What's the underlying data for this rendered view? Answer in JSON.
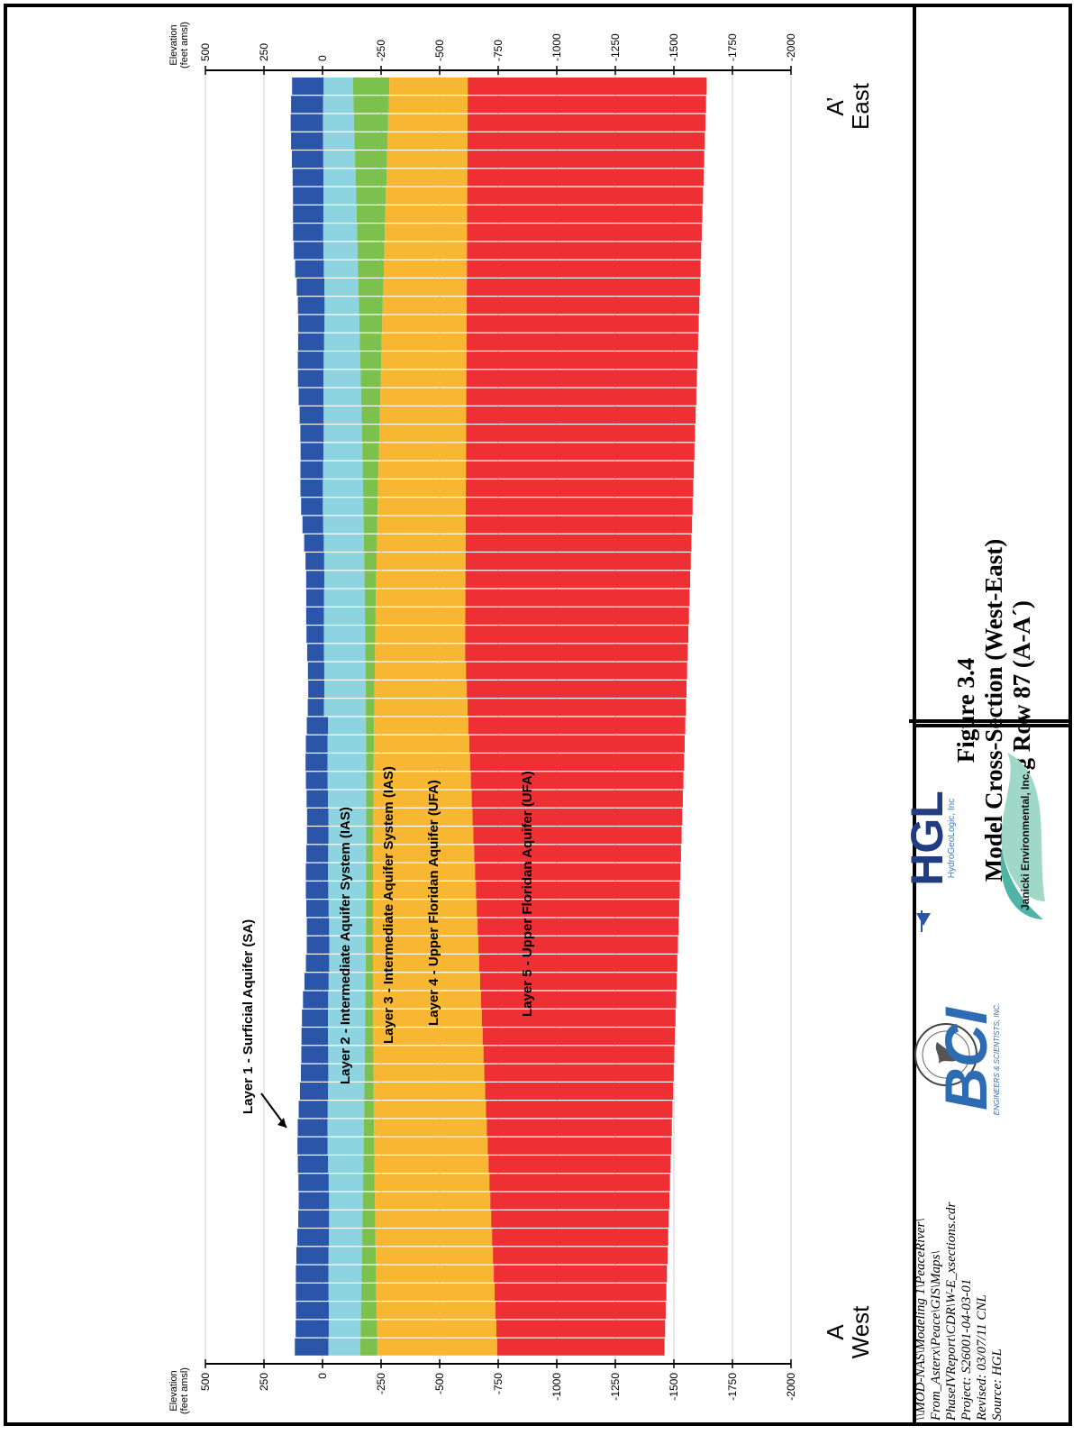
{
  "figure": {
    "title_line1": "Figure 3.4",
    "title_line2": "Model Cross-Section (West-East)",
    "title_line3": "Along Row 87 (A-A´)"
  },
  "notes": [
    "\\\\MOD-NAS\\Modeling 1\\PeaceRiver\\",
    "From_Asterx\\Peace\\GIS\\Maps\\",
    "PhaseIVReport\\CDR\\W-E_xsections.cdr",
    "Project: S26001-04-03-01",
    "Revised: 03/07/11  CNL",
    "Source: HGL"
  ],
  "axis": {
    "label_line1": "Elevation",
    "label_line2": "(feet amsl)",
    "ticks": [
      "500",
      "250",
      "0",
      "-250",
      "-500",
      "-750",
      "-1000",
      "-1250",
      "-1500",
      "-1750",
      "-2000"
    ]
  },
  "ends": {
    "west_letter": "A",
    "west_label": "West",
    "east_letter": "A’",
    "east_label": "East"
  },
  "layers": [
    {
      "label": "Layer 1 - Surficial Aquifer (SA)",
      "color": "#2b55a8"
    },
    {
      "label": "Layer 2 - Intermediate Aquifer System (IAS)",
      "color": "#8dd3e0"
    },
    {
      "label": "Layer 3 - Intermediate Aquifer System (IAS)",
      "color": "#7cc04e"
    },
    {
      "label": "Layer 4 - Upper Floridan Aquifer (UFA)",
      "color": "#f7b733"
    },
    {
      "label": "Layer 5 - Upper Floridan Aquifer (UFA)",
      "color": "#ee3034"
    }
  ],
  "logos": {
    "hgl_name": "HGL",
    "hgl_sub": "HydroGeoLogic, Inc",
    "janicki": "Janicki Environmental, Inc.",
    "bci": "BCI",
    "bci_sub": "ENGINEERS & SCIENTISTS, INC.",
    "seal": "SOUTHWEST FLORIDA WATER MANAGEMENT DISTRICT"
  }
}
